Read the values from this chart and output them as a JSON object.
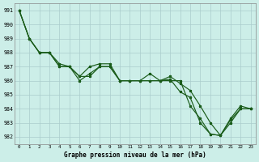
{
  "title": "Graphe pression niveau de la mer (hPa)",
  "background_color": "#cceee8",
  "grid_color": "#aacccc",
  "line_color": "#1a5c1a",
  "ylim": [
    981.5,
    991.5
  ],
  "yticks": [
    982,
    983,
    984,
    985,
    986,
    987,
    988,
    989,
    990,
    991
  ],
  "line1": [
    991.0,
    989.0,
    988.0,
    988.0,
    987.2,
    987.0,
    986.3,
    986.3,
    987.0,
    987.0,
    986.0,
    986.0,
    986.0,
    986.0,
    986.0,
    986.1,
    985.2,
    984.8,
    983.0,
    982.2,
    982.1,
    983.2,
    984.0,
    984.0
  ],
  "line2": [
    991.0,
    989.0,
    988.0,
    988.0,
    987.0,
    987.0,
    986.3,
    987.0,
    987.2,
    987.2,
    986.0,
    986.0,
    986.0,
    986.5,
    986.0,
    986.3,
    985.8,
    985.3,
    984.2,
    983.0,
    982.1,
    983.3,
    984.2,
    984.0
  ],
  "line3": [
    991.0,
    989.0,
    988.0,
    988.0,
    987.0,
    987.0,
    986.0,
    986.5,
    987.0,
    987.0,
    986.0,
    986.0,
    986.0,
    986.0,
    986.0,
    986.0,
    986.0,
    984.2,
    983.3,
    982.2,
    982.1,
    983.0,
    984.0,
    984.0
  ]
}
